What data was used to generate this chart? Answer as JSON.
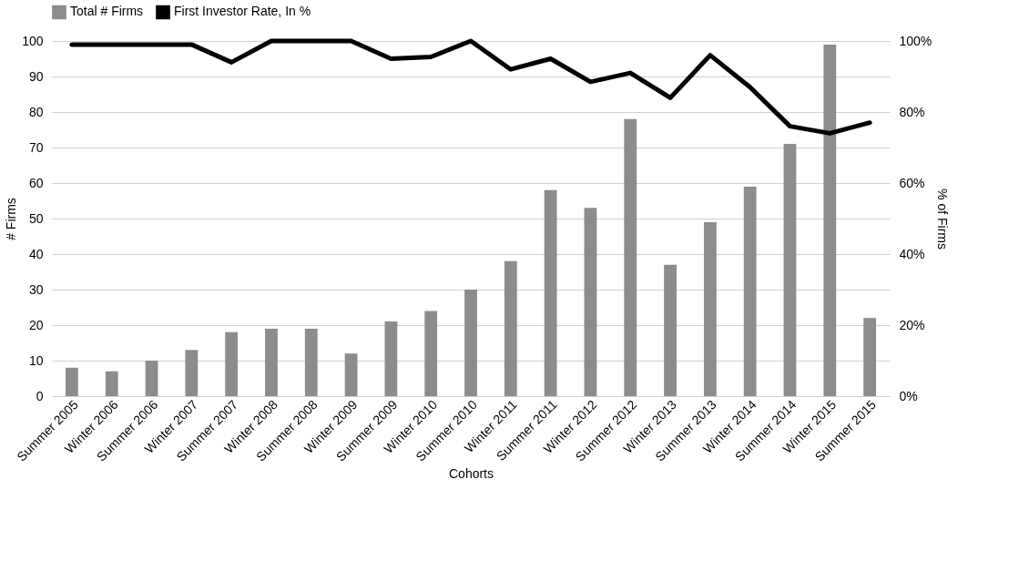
{
  "chart_data": {
    "type": "bar",
    "xlabel": "Cohorts",
    "ylabel": "# Firms",
    "y2label": "% of Firms",
    "categories": [
      "Summer 2005",
      "Winter 2006",
      "Summer 2006",
      "Winter 2007",
      "Summer 2007",
      "Winter 2008",
      "Summer 2008",
      "Winter 2009",
      "Summer 2009",
      "Winter 2010",
      "Summer 2010",
      "Winter 2011",
      "Summer 2011",
      "Winter 2012",
      "Summer 2012",
      "Winter 2013",
      "Summer 2013",
      "Winter 2014",
      "Summer 2014",
      "Winter 2015",
      "Summer 2015"
    ],
    "series": [
      {
        "name": "Total # Firms",
        "color": "#8c8c8c",
        "values": [
          8,
          7,
          10,
          13,
          18,
          19,
          19,
          12,
          21,
          24,
          30,
          38,
          58,
          53,
          78,
          37,
          49,
          59,
          71,
          99,
          22
        ]
      },
      {
        "name": "First Investor Rate, In %",
        "type": "line",
        "axis": "y2",
        "color": "#000000",
        "values": [
          99,
          99,
          99,
          99,
          94,
          100,
          100,
          100,
          95,
          95.5,
          100,
          92,
          95,
          88.5,
          91,
          84,
          96,
          87,
          76,
          74,
          77
        ]
      }
    ],
    "ylim": [
      0,
      100
    ],
    "yticks": [
      0,
      10,
      20,
      30,
      40,
      50,
      60,
      70,
      80,
      90,
      100
    ],
    "y2lim": [
      0,
      100
    ],
    "y2ticks": [
      {
        "value": 0,
        "label": "0%"
      },
      {
        "value": 20,
        "label": "20%"
      },
      {
        "value": 40,
        "label": "40%"
      },
      {
        "value": 60,
        "label": "60%"
      },
      {
        "value": 80,
        "label": "80%"
      },
      {
        "value": 100,
        "label": "100%"
      }
    ],
    "grid": "y",
    "legend": "top",
    "marker": "none",
    "line_style": "solid"
  }
}
